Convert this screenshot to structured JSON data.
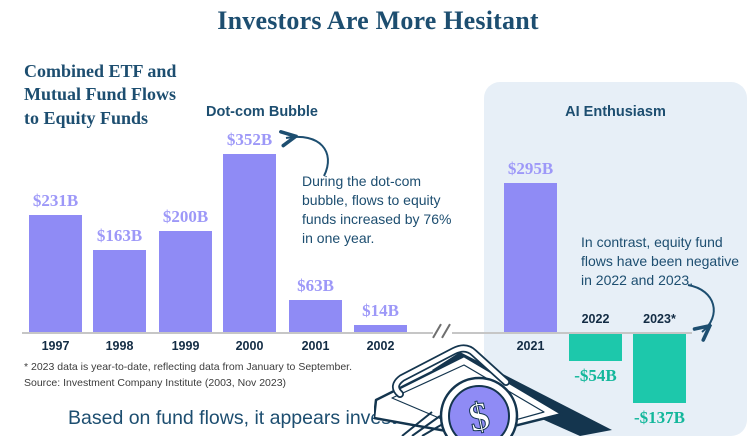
{
  "title": "Investors Are More Hesitant",
  "chart_heading": "Combined ETF and\nMutual Fund Flows\nto Equity Funds",
  "section_labels": {
    "dotcom": "Dot-com Bubble",
    "ai": "AI Enthusiasm"
  },
  "annotations": {
    "dotcom": "During the dot-com bubble, flows to equity funds increased by 76% in one year.",
    "ai": "In contrast, equity fund flows have been negative in 2022 and 2023."
  },
  "footnote": {
    "line1": "* 2023 data is year-to-date, reflecting data from January to September.",
    "line2": "Source: Investment Company Institute (2003, Nov 2023)"
  },
  "caption": "Based on fund flows, it appears investors are more",
  "icons": {
    "coin_symbol": "$"
  },
  "colors": {
    "positive_bar": "#8f8bf5",
    "negative_bar": "#1dc8ab",
    "positive_label": "#9d98f8",
    "negative_label": "#13b79b",
    "navy": "#1d4e70",
    "panel_bg": "#e7eff7"
  },
  "chart_data": {
    "type": "bar",
    "title": "Investors Are More Hesitant",
    "subtitle": "Combined ETF and Mutual Fund Flows to Equity Funds",
    "unit": "USD billions",
    "categories": [
      "1997",
      "1998",
      "1999",
      "2000",
      "2001",
      "2002",
      "2021",
      "2022",
      "2023*"
    ],
    "values": [
      231,
      163,
      200,
      352,
      63,
      14,
      295,
      -54,
      -137
    ],
    "value_labels": [
      "$231B",
      "$163B",
      "$200B",
      "$352B",
      "$63B",
      "$14B",
      "$295B",
      "-$54B",
      "-$137B"
    ],
    "groups": [
      {
        "id": "dotcom",
        "label": "Dot-com Bubble",
        "years": [
          "1997",
          "1998",
          "1999",
          "2000",
          "2001",
          "2002"
        ]
      },
      {
        "id": "ai",
        "label": "AI Enthusiasm",
        "years": [
          "2021",
          "2022",
          "2023*"
        ]
      }
    ],
    "axis_break_between": [
      "2002",
      "2021"
    ],
    "baseline": 0,
    "grid": false,
    "legend": false
  }
}
